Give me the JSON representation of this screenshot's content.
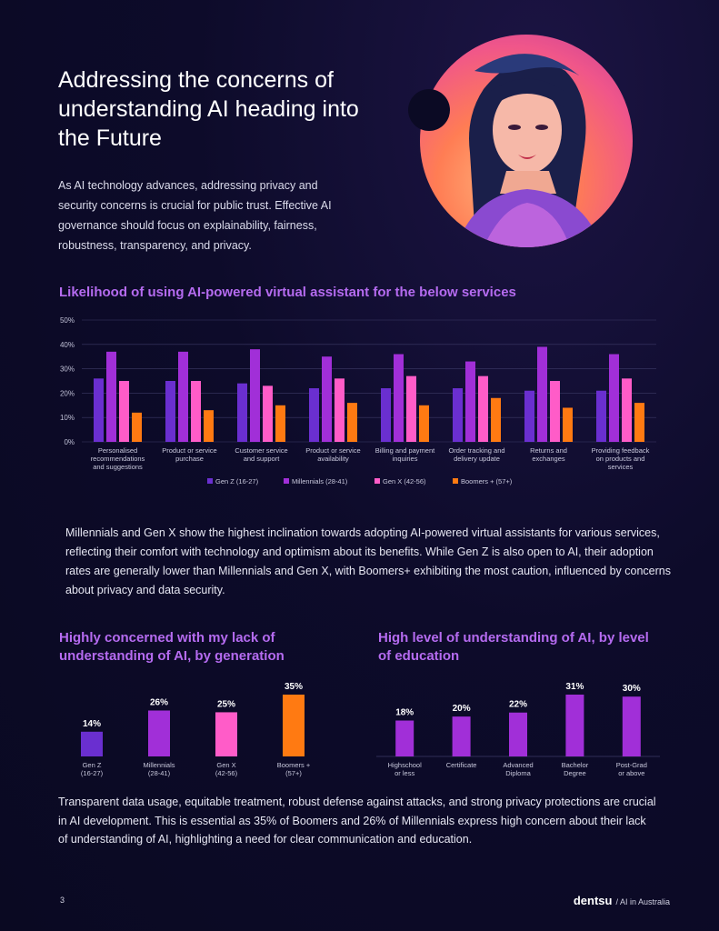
{
  "header": {
    "title": "Addressing the concerns of understanding AI heading into the Future",
    "intro": "As AI technology advances, addressing privacy and security concerns is crucial for public trust. Effective AI governance should focus on explainability, fairness, robustness, transparency, and privacy."
  },
  "hero": {
    "alt": "portrait-illustration"
  },
  "section1": {
    "title": "Likelihood of using AI-powered virtual assistant for the below services"
  },
  "paragraph1": "Millennials and Gen X show the highest inclination towards adopting AI-powered virtual assistants for various services, reflecting their comfort with technology and optimism about its benefits. While Gen Z is also open to AI, their adoption rates are generally lower than Millennials and Gen X, with Boomers+ exhibiting the most caution, influenced by concerns about privacy and data security.",
  "section2": {
    "title": "Highly concerned with my lack of understanding of AI, by generation"
  },
  "section3": {
    "title": "High level of understanding of AI, by level of education"
  },
  "closing": "Transparent data usage, equitable treatment, robust defense against attacks, and strong privacy protections are crucial in AI development. This is essential as 35% of Boomers and 26% of Millennials express high concern about their lack of understanding of AI, highlighting a need for clear communication and education.",
  "footer": {
    "page_number": "3",
    "brand": "dentsu",
    "publication": "/ AI in Australia"
  },
  "colors": {
    "genz": "#6a2fd0",
    "millennials": "#a12fd8",
    "genx": "#ff5cc8",
    "boomers": "#ff7a12",
    "accent": "#b56bf0"
  },
  "chart_data": [
    {
      "type": "bar",
      "title": "Likelihood of using AI-powered virtual assistant for the below services",
      "ylim": [
        0,
        50
      ],
      "yticks": [
        "0%",
        "10%",
        "20%",
        "30%",
        "40%",
        "50%"
      ],
      "categories": [
        [
          "Personalised",
          "recommendations",
          "and suggestions"
        ],
        [
          "Product or service",
          "purchase"
        ],
        [
          "Customer service",
          "and support"
        ],
        [
          "Product or service",
          "availability"
        ],
        [
          "Billing and payment",
          "inquiries"
        ],
        [
          "Order tracking and",
          "delivery update"
        ],
        [
          "Returns and",
          "exchanges"
        ],
        [
          "Providing feedback",
          "on products and",
          "services"
        ]
      ],
      "series": [
        {
          "name": "Gen Z (16-27)",
          "color": "#6a2fd0",
          "values": [
            26,
            25,
            24,
            22,
            22,
            22,
            21,
            21
          ]
        },
        {
          "name": "Millennials (28-41)",
          "color": "#a12fd8",
          "values": [
            37,
            37,
            38,
            35,
            36,
            33,
            39,
            36
          ]
        },
        {
          "name": "Gen X (42-56)",
          "color": "#ff5cc8",
          "values": [
            25,
            25,
            23,
            26,
            27,
            27,
            25,
            26
          ]
        },
        {
          "name": "Boomers + (57+)",
          "color": "#ff7a12",
          "values": [
            12,
            13,
            15,
            16,
            15,
            18,
            14,
            16
          ]
        }
      ]
    },
    {
      "type": "bar",
      "title": "Highly concerned with my lack of understanding of AI, by generation",
      "ylim": [
        0,
        35
      ],
      "categories": [
        [
          "Gen Z",
          "(16-27)"
        ],
        [
          "Millennials",
          "(28-41)"
        ],
        [
          "Gen X",
          "(42-56)"
        ],
        [
          "Boomers +",
          "(57+)"
        ]
      ],
      "values": [
        14,
        26,
        25,
        35
      ],
      "labels": [
        "14%",
        "26%",
        "25%",
        "35%"
      ],
      "colors": [
        "#6a2fd0",
        "#a12fd8",
        "#ff5cc8",
        "#ff7a12"
      ]
    },
    {
      "type": "bar",
      "title": "High level of understanding of AI, by level of education",
      "ylim": [
        0,
        31
      ],
      "categories": [
        [
          "Highschool",
          "or less"
        ],
        [
          "Certificate"
        ],
        [
          "Advanced",
          "Diploma"
        ],
        [
          "Bachelor",
          "Degree"
        ],
        [
          "Post-Grad",
          "or above"
        ]
      ],
      "values": [
        18,
        20,
        22,
        31,
        30
      ],
      "labels": [
        "18%",
        "20%",
        "22%",
        "31%",
        "30%"
      ],
      "colors": [
        "#a12fd8",
        "#a12fd8",
        "#a12fd8",
        "#a12fd8",
        "#a12fd8"
      ]
    }
  ]
}
